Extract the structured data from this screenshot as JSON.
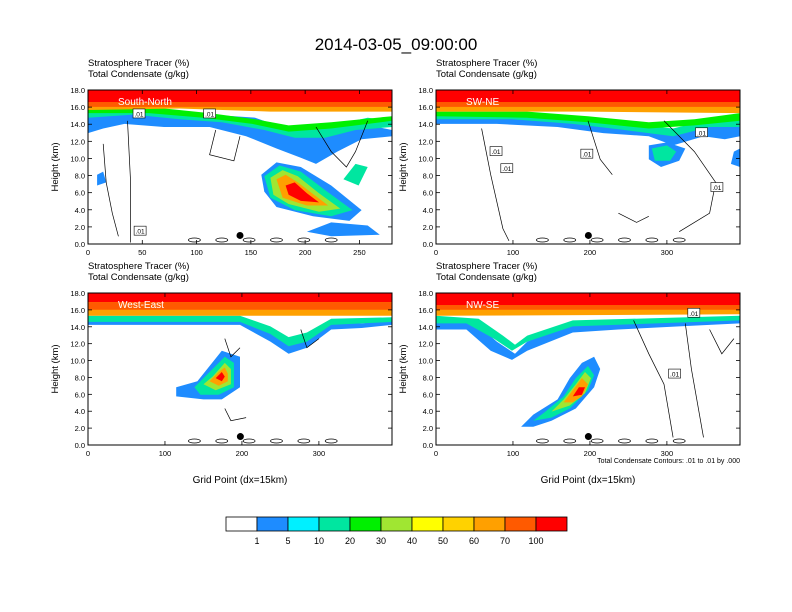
{
  "title": "2014-03-05_09:00:00",
  "colorbar": {
    "colors": [
      "#ffffff",
      "#1e8cff",
      "#00f0ff",
      "#00e6a0",
      "#00f000",
      "#a0e632",
      "#ffff00",
      "#ffd200",
      "#ffa000",
      "#ff5a00",
      "#ff0000"
    ],
    "labels": [
      "1",
      "5",
      "10",
      "20",
      "30",
      "40",
      "50",
      "60",
      "70",
      "100"
    ]
  },
  "contour_note": "Total Condensate Contours: .01 to .01 by .000",
  "chart_data": [
    {
      "type": "heatmap",
      "label": "South-North",
      "title_lines": [
        "Stratosphere Tracer   (%)",
        "Total Condensate   (g/kg)"
      ],
      "ylabel": "Height (km)",
      "xlabel": "",
      "xlim": [
        0,
        280
      ],
      "ylim": [
        0,
        18
      ],
      "xticks": [
        0,
        50,
        100,
        150,
        200,
        250
      ],
      "yticks": [
        "0.0",
        "2.0",
        "4.0",
        "6.0",
        "8.0",
        "10.0",
        "12.0",
        "14.0",
        "16.0",
        "18.0"
      ],
      "contour_labels": [
        {
          "text": ".01",
          "x": 47,
          "y": 15.2
        },
        {
          "text": ".01",
          "x": 112,
          "y": 15.2
        },
        {
          "text": ".01",
          "x": 48,
          "y": 1.5
        }
      ],
      "marker": {
        "x": 140,
        "y": 1.0
      }
    },
    {
      "type": "heatmap",
      "label": "SW-NE",
      "title_lines": [
        "Stratosphere Tracer   (%)",
        "Total Condensate   (g/kg)"
      ],
      "ylabel": "Height (km)",
      "xlabel": "",
      "xlim": [
        0,
        395
      ],
      "ylim": [
        0,
        18
      ],
      "xticks": [
        0,
        100,
        200,
        300
      ],
      "yticks": [
        "0.0",
        "2.0",
        "4.0",
        "6.0",
        "8.0",
        "10.0",
        "12.0",
        "14.0",
        "16.0",
        "18.0"
      ],
      "contour_labels": [
        {
          "text": ".01",
          "x": 78,
          "y": 10.8
        },
        {
          "text": ".01",
          "x": 92,
          "y": 8.8
        },
        {
          "text": ".01",
          "x": 196,
          "y": 10.5
        },
        {
          "text": ".01",
          "x": 345,
          "y": 13.0
        },
        {
          "text": ".01",
          "x": 365,
          "y": 6.6
        }
      ],
      "marker": {
        "x": 198,
        "y": 1.0
      }
    },
    {
      "type": "heatmap",
      "label": "West-East",
      "title_lines": [
        "Stratosphere Tracer   (%)",
        "Total Condensate   (g/kg)"
      ],
      "ylabel": "Height (km)",
      "xlabel": "Grid Point (dx=15km)",
      "xlim": [
        0,
        395
      ],
      "ylim": [
        0,
        18
      ],
      "xticks": [
        0,
        100,
        200,
        300
      ],
      "yticks": [
        "0.0",
        "2.0",
        "4.0",
        "6.0",
        "8.0",
        "10.0",
        "12.0",
        "14.0",
        "16.0",
        "18.0"
      ],
      "contour_labels": [],
      "marker": {
        "x": 198,
        "y": 1.0
      }
    },
    {
      "type": "heatmap",
      "label": "NW-SE",
      "title_lines": [
        "Stratosphere Tracer   (%)",
        "Total Condensate   (g/kg)"
      ],
      "ylabel": "Height (km)",
      "xlabel": "Grid Point (dx=15km)",
      "xlim": [
        0,
        395
      ],
      "ylim": [
        0,
        18
      ],
      "xticks": [
        0,
        100,
        200,
        300
      ],
      "yticks": [
        "0.0",
        "2.0",
        "4.0",
        "6.0",
        "8.0",
        "10.0",
        "12.0",
        "14.0",
        "16.0",
        "18.0"
      ],
      "contour_labels": [
        {
          "text": ".01",
          "x": 335,
          "y": 15.6
        },
        {
          "text": ".01",
          "x": 310,
          "y": 8.4
        }
      ],
      "marker": {
        "x": 198,
        "y": 1.0
      }
    }
  ]
}
